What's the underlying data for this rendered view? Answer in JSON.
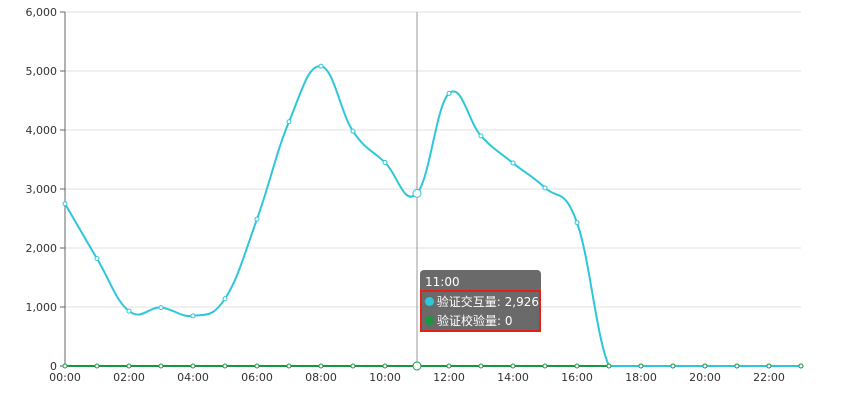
{
  "chart_data": {
    "type": "line",
    "categories": [
      "00:00",
      "01:00",
      "02:00",
      "03:00",
      "04:00",
      "05:00",
      "06:00",
      "07:00",
      "08:00",
      "09:00",
      "10:00",
      "11:00",
      "12:00",
      "13:00",
      "14:00",
      "15:00",
      "16:00",
      "17:00",
      "18:00",
      "19:00",
      "20:00",
      "21:00",
      "22:00",
      "23:00"
    ],
    "x_tick_labels": [
      "00:00",
      "02:00",
      "04:00",
      "06:00",
      "08:00",
      "10:00",
      "12:00",
      "14:00",
      "16:00",
      "18:00",
      "20:00",
      "22:00"
    ],
    "y_tick_labels": [
      "0",
      "1,000",
      "2,000",
      "3,000",
      "4,000",
      "5,000",
      "6,000"
    ],
    "ylim": [
      0,
      6000
    ],
    "grid": true,
    "smooth": true,
    "series": [
      {
        "name": "验证交互量",
        "color": "#2ec7d9",
        "values": [
          2750,
          1820,
          930,
          990,
          850,
          1140,
          2490,
          4140,
          5080,
          3980,
          3450,
          2926,
          4620,
          3900,
          3440,
          3020,
          2430,
          0,
          0,
          0,
          0,
          0,
          0,
          0
        ]
      },
      {
        "name": "验证校验量",
        "color": "#1a9641",
        "values": [
          0,
          0,
          0,
          0,
          0,
          0,
          0,
          0,
          0,
          0,
          0,
          0,
          0,
          0,
          0,
          0,
          0,
          0,
          0,
          0,
          0,
          0,
          0,
          0
        ]
      }
    ],
    "tooltip": {
      "title": "11:00",
      "rows": [
        {
          "label": "验证交互量: 2,926",
          "color": "#2ec7d9"
        },
        {
          "label": "验证校验量: 0",
          "color": "#1a9641"
        }
      ],
      "highlight_color": "#e0221b"
    }
  }
}
